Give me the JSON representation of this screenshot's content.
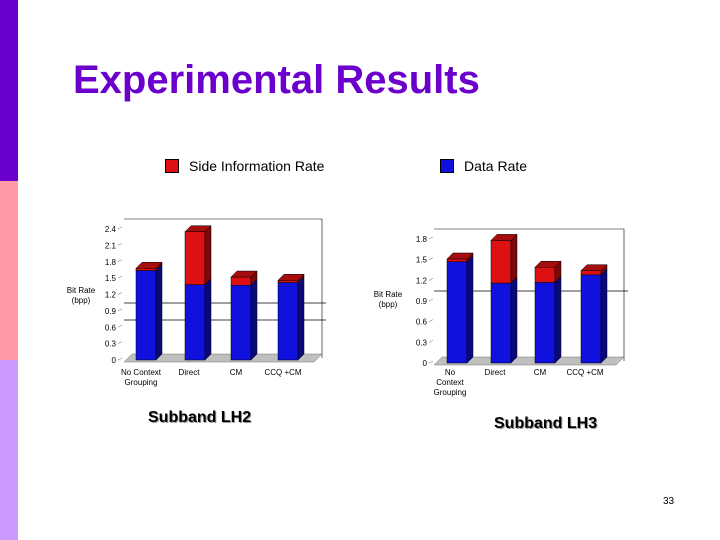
{
  "slide": {
    "title": "Experimental Results",
    "page_number": "33",
    "colors": {
      "accent": "#6b00cc",
      "side_info": "#dd1111",
      "data_rate": "#1111dd"
    }
  },
  "legend": [
    {
      "label": "Side Information Rate",
      "color": "#dd1111"
    },
    {
      "label": "Data Rate",
      "color": "#1111dd"
    }
  ],
  "chart_data": [
    {
      "type": "bar",
      "stacked": true,
      "subtitle": "Subband LH2",
      "ylabel": "Bit Rate (bpp)",
      "ylim": [
        0,
        2.4
      ],
      "yticks": [
        "0",
        "0.3",
        "0.6",
        "0.9",
        "1.2",
        "1.5",
        "1.8",
        "2.1",
        "2.4"
      ],
      "categories": [
        "No Context Grouping",
        "Direct",
        "CM",
        "CCQ +CM"
      ],
      "series": [
        {
          "name": "Data Rate",
          "values": [
            1.64,
            1.38,
            1.37,
            1.42
          ]
        },
        {
          "name": "Side Information Rate",
          "values": [
            0.04,
            0.97,
            0.15,
            0.04
          ]
        }
      ]
    },
    {
      "type": "bar",
      "stacked": true,
      "subtitle": "Subband LH3",
      "ylabel": "Bit Rate (bpp)",
      "ylim": [
        0,
        1.8
      ],
      "yticks": [
        "0",
        "0.3",
        "0.6",
        "0.9",
        "1.2",
        "1.5",
        "1.8"
      ],
      "categories": [
        "No Context Grouping",
        "Direct",
        "CM",
        "CCQ +CM"
      ],
      "series": [
        {
          "name": "Data Rate",
          "values": [
            1.47,
            1.16,
            1.17,
            1.28
          ]
        },
        {
          "name": "Side Information Rate",
          "values": [
            0.04,
            0.62,
            0.22,
            0.06
          ]
        }
      ]
    }
  ]
}
